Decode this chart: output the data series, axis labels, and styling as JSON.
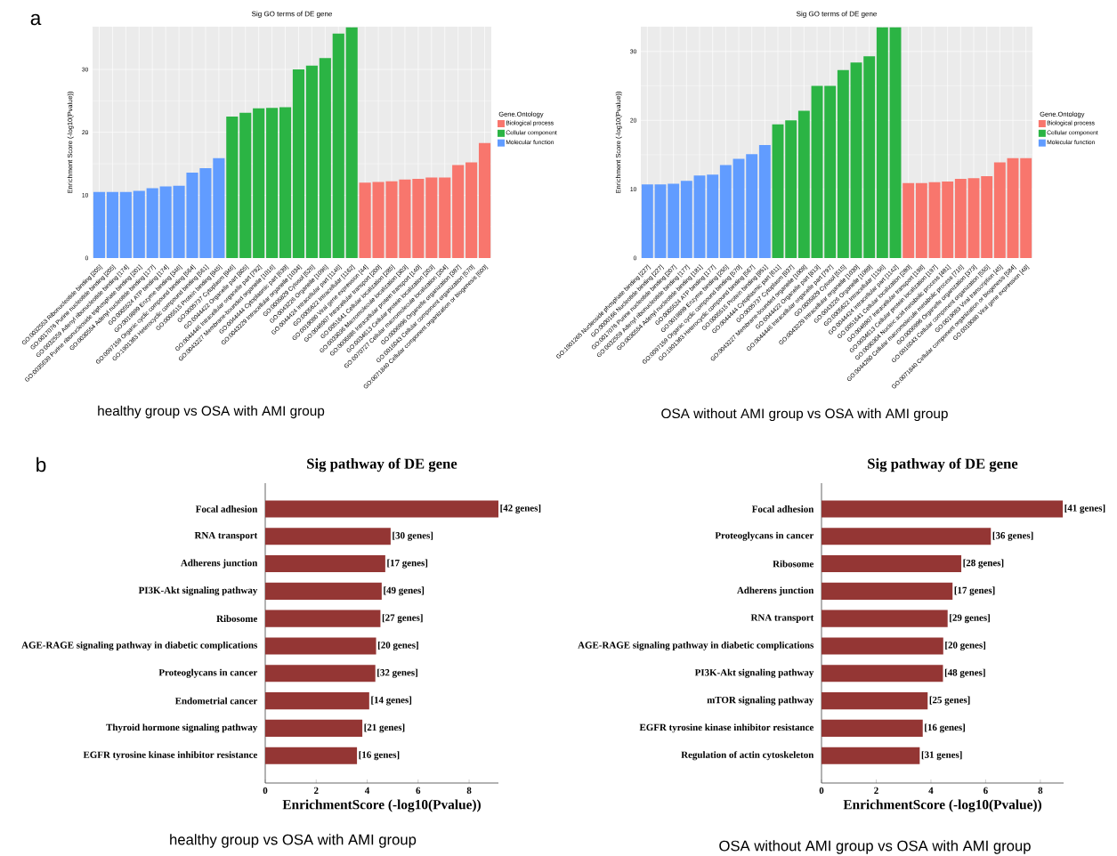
{
  "chart_data": [
    {
      "type": "bar",
      "title": "Sig GO terms of DE gene",
      "ylabel": "Enrichment Score (-log10(Pvalue))",
      "legend_title": "Gene.Ontology",
      "legend": "right",
      "grid": true,
      "categories": [
        "GO:0032553 Ribonucleotide binding [205]",
        "GO:0017076 Purine nucleotide binding [205]",
        "GO:0032559 Adenyl ribonucleotide binding [174]",
        "GO:0035639 Purine ribonucleoside triphosphate binding [201]",
        "GO:0030554 Adenyl nucleotide binding [177]",
        "GO:0005524 ATP binding [174]",
        "GO:0019899 Enzyme binding [346]",
        "GO:0097159 Organic cyclic compound binding [564]",
        "GO:1901363 Heterocyclic compound binding [561]",
        "GO:0005515 Protein binding [945]",
        "GO:0005737 Cytoplasm [946]",
        "GO:0044422 Organelle part [805]",
        "GO:0044446 Intracellular organelle part [792]",
        "GO:0043227 Membrane-bounded organelle [1016]",
        "GO:0044444 Cytoplasmic part [639]",
        "GO:0043229 Intracellular organelle [1034]",
        "GO:0005829 Cytosol [526]",
        "GO:0043226 Organelle [1096]",
        "GO:0044424 Intracellular part [1146]",
        "GO:0005622 Intracellular [1162]",
        "GO:0019080 Viral gene expression [44]",
        "GO:0046907 Intracellular transport [200]",
        "GO:0051641 Cellular localization [285]",
        "GO:0033036 Macromolecule localization [303]",
        "GO:0006886 Intracellular protein transport [140]",
        "GO:0034613 Cellular protein localization [203]",
        "GO:0070727 Cellular macromolecule localization [204]",
        "GO:0006996 Organelle organization [387]",
        "GO:0016043 Cellular component organization [570]",
        "GO:0071840 Cellular component organization or biogenesis [600]"
      ],
      "series": [
        {
          "name": "Biological process",
          "color": "#f8766d",
          "values": [
            null,
            null,
            null,
            null,
            null,
            null,
            null,
            null,
            null,
            null,
            null,
            null,
            null,
            null,
            null,
            null,
            null,
            null,
            null,
            null,
            12.0,
            12.1,
            12.2,
            12.5,
            12.6,
            12.8,
            12.8,
            14.8,
            15.2,
            18.3
          ]
        },
        {
          "name": "Cellular component",
          "color": "#2bb444",
          "values": [
            null,
            null,
            null,
            null,
            null,
            null,
            null,
            null,
            null,
            null,
            22.5,
            23.1,
            23.8,
            23.9,
            24.0,
            30.0,
            30.6,
            31.8,
            35.7,
            36.7,
            null,
            null,
            null,
            null,
            null,
            null,
            null,
            null,
            null,
            null
          ]
        },
        {
          "name": "Molecular function",
          "color": "#619cff",
          "values": [
            10.5,
            10.5,
            10.5,
            10.7,
            11.1,
            11.4,
            11.5,
            13.6,
            14.3,
            15.9,
            null,
            null,
            null,
            null,
            null,
            null,
            null,
            null,
            null,
            null,
            null,
            null,
            null,
            null,
            null,
            null,
            null,
            null,
            null,
            null
          ]
        }
      ],
      "ylim": [
        0,
        36.8
      ],
      "yticks": [
        0,
        10,
        20,
        30
      ],
      "annotations": [
        "a",
        "healthy group vs OSA with AMI group"
      ]
    },
    {
      "type": "bar",
      "title": "Sig GO terms of DE gene",
      "ylabel": "Enrichment Score (-log10(Pvalue))",
      "legend_title": "Gene.Ontology",
      "legend": "right",
      "grid": true,
      "categories": [
        "GO:1901265 Nucleoside phosphate binding [227]",
        "GO:0000166 Nucleotide binding [227]",
        "GO:0017076 Purine nucleotide binding [207]",
        "GO:0032559 Adenyl ribonucleotide binding [177]",
        "GO:0030554 Adenyl nucleotide binding [181]",
        "GO:0005524 ATP binding [177]",
        "GO:0019899 Enzyme binding [255]",
        "GO:0097159 Organic cyclic compound binding [570]",
        "GO:1901363 Heterocyclic compound binding [567]",
        "GO:0005515 Protein binding [951]",
        "GO:0044444 Cytoplasmic part [611]",
        "GO:0005737 Cytoplasm [937]",
        "GO:0043227 Membrane-bounded organelle [1008]",
        "GO:0044422 Organelle part [813]",
        "GO:0044446 Intracellular organelle part [797]",
        "GO:0005829 Cytosol [515]",
        "GO:0043229 Intracellular organelle [1030]",
        "GO:0043226 Organelle [1089]",
        "GO:0005622 Intracellular [1156]",
        "GO:0044424 Intracellular part [1142]",
        "GO:0051641 Cellular localization [280]",
        "GO:0046907 Intracellular transport [198]",
        "GO:0034613 Cellular protein localization [197]",
        "GO:0090304 Nucleic acid metabolic process [481]",
        "GO:0044260 Cellular macromolecule metabolic process [716]",
        "GO:0006996 Organelle organization [373]",
        "GO:0016043 Cellular component organization [555]",
        "GO:0019083 Viral transcription [45]",
        "GO:0071840 Cellular component organization or biogenesis [584]",
        "GO:0019080 Viral gene expression [48]"
      ],
      "series": [
        {
          "name": "Biological process",
          "color": "#f8766d",
          "values": [
            null,
            null,
            null,
            null,
            null,
            null,
            null,
            null,
            null,
            null,
            null,
            null,
            null,
            null,
            null,
            null,
            null,
            null,
            null,
            null,
            10.9,
            10.9,
            11.0,
            11.1,
            11.5,
            11.6,
            11.9,
            13.9,
            14.5,
            14.5
          ]
        },
        {
          "name": "Cellular component",
          "color": "#2bb444",
          "values": [
            null,
            null,
            null,
            null,
            null,
            null,
            null,
            null,
            null,
            null,
            19.4,
            20.0,
            21.4,
            25.0,
            25.0,
            27.3,
            28.4,
            29.3,
            33.5,
            33.5,
            null,
            null,
            null,
            null,
            null,
            null,
            null,
            null,
            null,
            null
          ]
        },
        {
          "name": "Molecular function",
          "color": "#619cff",
          "values": [
            10.7,
            10.7,
            10.8,
            11.2,
            12.0,
            12.1,
            13.5,
            14.4,
            15.1,
            16.4,
            null,
            null,
            null,
            null,
            null,
            null,
            null,
            null,
            null,
            null,
            null,
            null,
            null,
            null,
            null,
            null,
            null,
            null,
            null,
            null
          ]
        }
      ],
      "ylim": [
        0,
        33.6
      ],
      "yticks": [
        0,
        10,
        20,
        30
      ],
      "annotations": [
        "OSA without AMI group vs OSA with AMI group"
      ]
    },
    {
      "type": "bar",
      "orientation": "horizontal",
      "title": "Sig pathway of DE gene",
      "xlabel": "EnrichmentScore (-log10(Pvalue))",
      "color": "#943634",
      "categories": [
        "Focal adhesion",
        "RNA transport",
        "Adherens junction",
        "PI3K-Akt signaling pathway",
        "Ribosome",
        "AGE-RAGE signaling pathway in diabetic complications",
        "Proteoglycans in cancer",
        "Endometrial cancer",
        "Thyroid hormone signaling pathway",
        "EGFR tyrosine kinase inhibitor resistance"
      ],
      "values": [
        9.15,
        4.92,
        4.71,
        4.57,
        4.52,
        4.35,
        4.32,
        4.08,
        3.81,
        3.6
      ],
      "xlim": [
        0,
        9.15
      ],
      "xticks": [
        0,
        2,
        4,
        6,
        8
      ],
      "annotations": [
        "b",
        "healthy group vs OSA with AMI group",
        {
          "text": "[42 genes]",
          "x": 9.15,
          "y": "Focal adhesion"
        },
        {
          "text": "[30 genes]",
          "x": 4.92,
          "y": "RNA transport"
        },
        {
          "text": "[17 genes]",
          "x": 4.71,
          "y": "Adherens junction"
        },
        {
          "text": "[49 genes]",
          "x": 4.57,
          "y": "PI3K-Akt signaling pathway"
        },
        {
          "text": "[27 genes]",
          "x": 4.52,
          "y": "Ribosome"
        },
        {
          "text": "[20 genes]",
          "x": 4.35,
          "y": "AGE-RAGE signaling pathway in diabetic complications"
        },
        {
          "text": "[32 genes]",
          "x": 4.32,
          "y": "Proteoglycans in cancer"
        },
        {
          "text": "[14 genes]",
          "x": 4.08,
          "y": "Endometrial cancer"
        },
        {
          "text": "[21 genes]",
          "x": 3.81,
          "y": "Thyroid hormone signaling pathway"
        },
        {
          "text": "[16 genes]",
          "x": 3.6,
          "y": "EGFR tyrosine kinase inhibitor resistance"
        }
      ]
    },
    {
      "type": "bar",
      "orientation": "horizontal",
      "title": "Sig pathway of DE gene",
      "xlabel": "EnrichmentScore (-log10(Pvalue))",
      "color": "#943634",
      "categories": [
        "Focal adhesion",
        "Proteoglycans in cancer",
        "Ribosome",
        "Adherens junction",
        "RNA transport",
        "AGE-RAGE signaling pathway in diabetic complications",
        "PI3K-Akt signaling pathway",
        "mTOR signaling pathway",
        "EGFR tyrosine kinase inhibitor resistance",
        "Regulation of actin cytoskeleton"
      ],
      "values": [
        8.82,
        6.19,
        5.11,
        4.79,
        4.61,
        4.45,
        4.44,
        3.88,
        3.7,
        3.59
      ],
      "xlim": [
        0,
        8.85
      ],
      "xticks": [
        0,
        2,
        4,
        6,
        8
      ],
      "annotations": [
        "OSA without AMI group vs OSA with AMI group",
        {
          "text": "[41 genes]",
          "x": 8.82,
          "y": "Focal adhesion"
        },
        {
          "text": "[36 genes]",
          "x": 6.19,
          "y": "Proteoglycans in cancer"
        },
        {
          "text": "[28 genes]",
          "x": 5.11,
          "y": "Ribosome"
        },
        {
          "text": "[17 genes]",
          "x": 4.79,
          "y": "Adherens junction"
        },
        {
          "text": "[29 genes]",
          "x": 4.61,
          "y": "RNA transport"
        },
        {
          "text": "[20 genes]",
          "x": 4.45,
          "y": "AGE-RAGE signaling pathway in diabetic complications"
        },
        {
          "text": "[48 genes]",
          "x": 4.44,
          "y": "PI3K-Akt signaling pathway"
        },
        {
          "text": "[25 genes]",
          "x": 3.88,
          "y": "mTOR signaling pathway"
        },
        {
          "text": "[16 genes]",
          "x": 3.7,
          "y": "EGFR tyrosine kinase inhibitor resistance"
        },
        {
          "text": "[31 genes]",
          "x": 3.59,
          "y": "Regulation of actin cytoskeleton"
        }
      ]
    }
  ]
}
